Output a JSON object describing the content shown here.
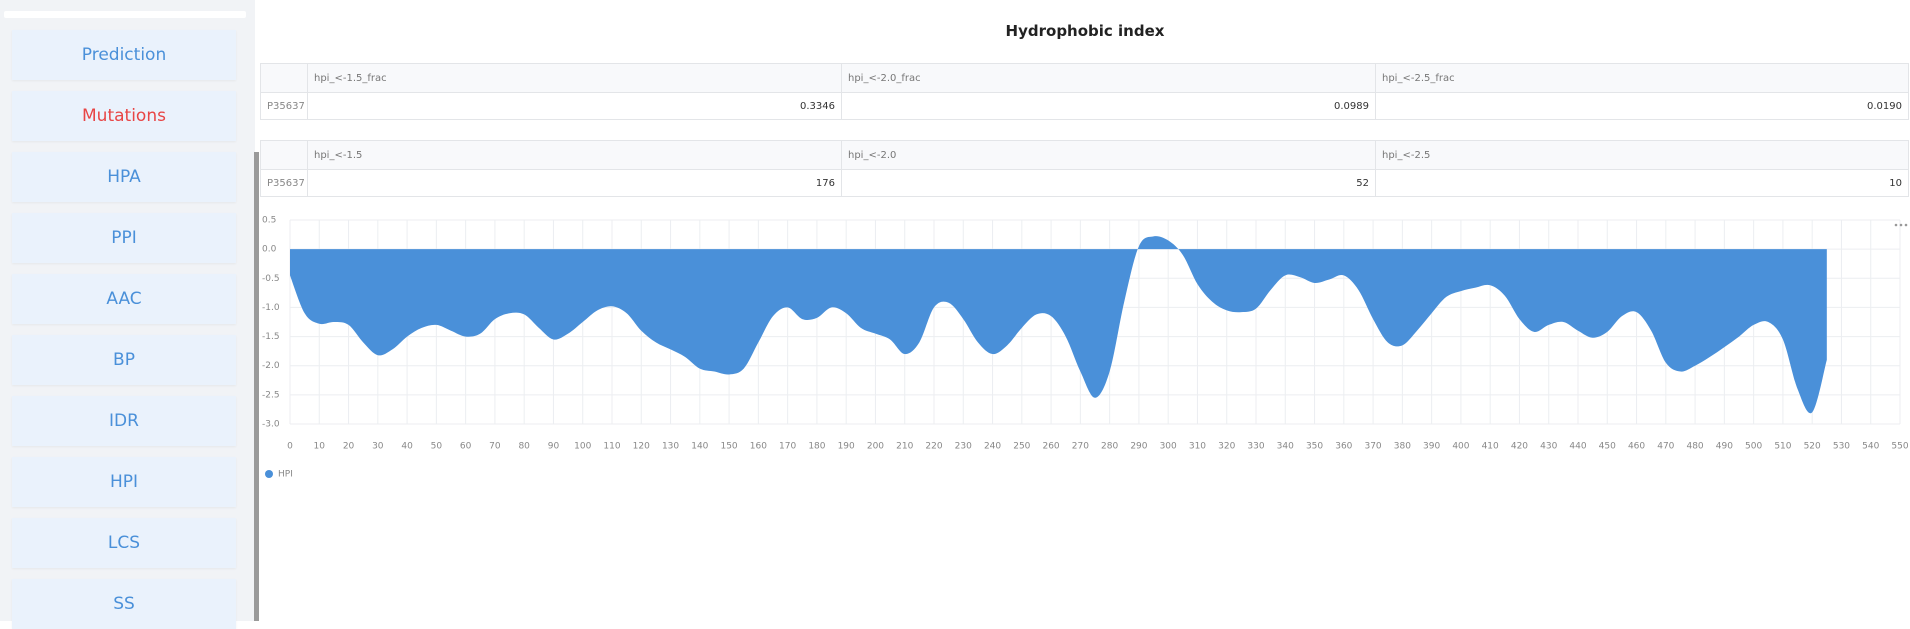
{
  "nav": {
    "items": [
      "Prediction",
      "Mutations",
      "HPA",
      "PPI",
      "AAC",
      "BP",
      "IDR",
      "HPI",
      "LCS",
      "SS"
    ],
    "active_index": 1,
    "color": "#4a90d9",
    "active_color": "#e84545"
  },
  "header": {
    "title": "Hydrophobic index"
  },
  "tables": [
    {
      "headers": [
        "hpi_<-1.5_frac",
        "hpi_<-2.0_frac",
        "hpi_<-2.5_frac"
      ],
      "rows": [
        [
          "P35637",
          "0.3346",
          "0.0989",
          "0.0190"
        ]
      ]
    },
    {
      "headers": [
        "hpi_<-1.5",
        "hpi_<-2.0",
        "hpi_<-2.5"
      ],
      "rows": [
        [
          "P35637",
          "176",
          "52",
          "10"
        ]
      ]
    }
  ],
  "chart_data": {
    "type": "area",
    "x": [
      0,
      5,
      10,
      15,
      20,
      25,
      30,
      35,
      40,
      45,
      50,
      55,
      60,
      65,
      70,
      75,
      80,
      85,
      90,
      95,
      100,
      105,
      110,
      115,
      120,
      125,
      130,
      135,
      140,
      145,
      150,
      155,
      160,
      165,
      170,
      175,
      180,
      185,
      190,
      195,
      200,
      205,
      210,
      215,
      220,
      225,
      230,
      235,
      240,
      245,
      250,
      255,
      260,
      265,
      270,
      275,
      280,
      285,
      290,
      295,
      300,
      305,
      310,
      315,
      320,
      325,
      330,
      335,
      340,
      345,
      350,
      355,
      360,
      365,
      370,
      375,
      380,
      385,
      390,
      395,
      400,
      405,
      410,
      415,
      420,
      425,
      430,
      435,
      440,
      445,
      450,
      455,
      460,
      465,
      470,
      475,
      480,
      485,
      490,
      495,
      500,
      505,
      510,
      515,
      520,
      525
    ],
    "series": [
      {
        "name": "HPI",
        "color": "#4a90d9",
        "values": [
          -0.45,
          -1.1,
          -1.28,
          -1.25,
          -1.3,
          -1.6,
          -1.82,
          -1.72,
          -1.5,
          -1.35,
          -1.3,
          -1.4,
          -1.5,
          -1.45,
          -1.2,
          -1.1,
          -1.12,
          -1.35,
          -1.55,
          -1.45,
          -1.25,
          -1.05,
          -0.98,
          -1.1,
          -1.4,
          -1.6,
          -1.72,
          -1.85,
          -2.05,
          -2.1,
          -2.15,
          -2.05,
          -1.6,
          -1.15,
          -1.0,
          -1.2,
          -1.18,
          -1.0,
          -1.1,
          -1.35,
          -1.45,
          -1.55,
          -1.8,
          -1.6,
          -1.0,
          -0.92,
          -1.2,
          -1.6,
          -1.8,
          -1.65,
          -1.35,
          -1.12,
          -1.15,
          -1.5,
          -2.1,
          -2.55,
          -2.1,
          -0.9,
          0.05,
          0.22,
          0.15,
          -0.1,
          -0.6,
          -0.9,
          -1.05,
          -1.08,
          -1.02,
          -0.7,
          -0.45,
          -0.48,
          -0.58,
          -0.52,
          -0.45,
          -0.7,
          -1.2,
          -1.6,
          -1.65,
          -1.4,
          -1.1,
          -0.82,
          -0.72,
          -0.66,
          -0.62,
          -0.8,
          -1.2,
          -1.42,
          -1.3,
          -1.25,
          -1.4,
          -1.52,
          -1.42,
          -1.15,
          -1.08,
          -1.4,
          -1.95,
          -2.1,
          -2.0,
          -1.85,
          -1.68,
          -1.5,
          -1.3,
          -1.25,
          -1.55,
          -2.4,
          -2.8,
          -1.9
        ]
      }
    ],
    "xlim": [
      0,
      550
    ],
    "ylim": [
      -3.0,
      0.5
    ],
    "xticks": [
      0,
      10,
      20,
      30,
      40,
      50,
      60,
      70,
      80,
      90,
      100,
      110,
      120,
      130,
      140,
      150,
      160,
      170,
      180,
      190,
      200,
      210,
      220,
      230,
      240,
      250,
      260,
      270,
      280,
      290,
      300,
      310,
      320,
      330,
      340,
      350,
      360,
      370,
      380,
      390,
      400,
      410,
      420,
      430,
      440,
      450,
      460,
      470,
      480,
      490,
      500,
      510,
      520,
      530,
      540,
      550
    ],
    "yticks": [
      0.5,
      {
        "value": 0.0,
        "label": "0.0"
      },
      -0.5,
      {
        "value": -1.0,
        "label": "-1.0"
      },
      -1.5,
      {
        "value": -2.0,
        "label": "-2.0"
      },
      -2.5,
      {
        "value": -3.0,
        "label": "-3.0"
      }
    ],
    "grid": true,
    "legend": "bottom-left"
  }
}
